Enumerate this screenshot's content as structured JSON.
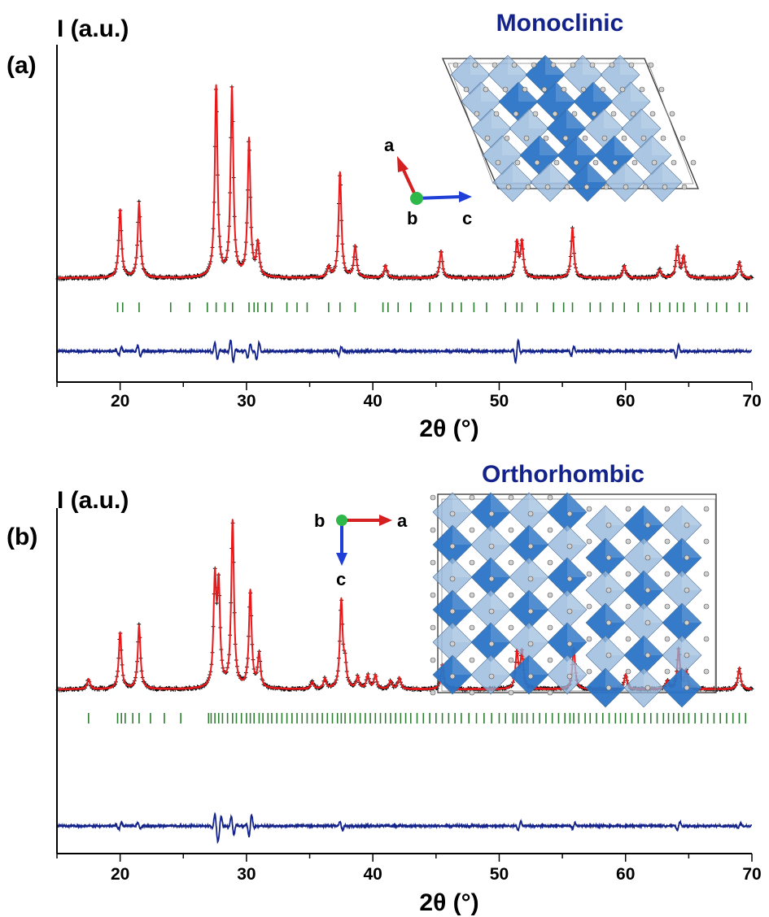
{
  "chart_data": [
    {
      "type": "line",
      "panel_label": "(a)",
      "structure_title": "Monoclinic",
      "crystal_axes": {
        "first": "a",
        "view": "b",
        "second": "c"
      },
      "ylabel": "I (a.u.)",
      "xlabel": "2θ (°)",
      "xlim": [
        15,
        70
      ],
      "xticks": [
        20,
        30,
        40,
        50,
        60,
        70
      ],
      "grid": false,
      "colors": {
        "observed": "#000000",
        "calculated": "#e8191b",
        "difference": "#14238a",
        "bragg": "#2e7d32"
      },
      "series": [
        {
          "name": "observed"
        },
        {
          "name": "calculated"
        },
        {
          "name": "difference"
        },
        {
          "name": "bragg"
        }
      ],
      "peaks": [
        {
          "x": 20.0,
          "h": 0.33
        },
        {
          "x": 21.5,
          "h": 0.36
        },
        {
          "x": 27.6,
          "h": 0.92
        },
        {
          "x": 28.85,
          "h": 0.91
        },
        {
          "x": 30.2,
          "h": 0.66
        },
        {
          "x": 30.9,
          "h": 0.16
        },
        {
          "x": 36.5,
          "h": 0.05
        },
        {
          "x": 37.4,
          "h": 0.51
        },
        {
          "x": 38.6,
          "h": 0.15
        },
        {
          "x": 41.0,
          "h": 0.06
        },
        {
          "x": 45.4,
          "h": 0.13
        },
        {
          "x": 51.4,
          "h": 0.17
        },
        {
          "x": 51.8,
          "h": 0.17
        },
        {
          "x": 55.8,
          "h": 0.24
        },
        {
          "x": 59.9,
          "h": 0.06
        },
        {
          "x": 62.7,
          "h": 0.04
        },
        {
          "x": 64.1,
          "h": 0.15
        },
        {
          "x": 64.6,
          "h": 0.1
        },
        {
          "x": 69.0,
          "h": 0.08
        }
      ],
      "bragg_positions": [
        19.8,
        20.2,
        21.5,
        24.0,
        25.5,
        26.9,
        27.6,
        28.3,
        28.9,
        30.2,
        30.6,
        30.9,
        31.5,
        32.0,
        33.2,
        34.0,
        34.8,
        36.5,
        37.4,
        38.6,
        40.8,
        41.2,
        42.0,
        43.0,
        44.5,
        45.4,
        46.3,
        47.0,
        48.0,
        49.0,
        50.5,
        51.4,
        51.8,
        53.0,
        54.3,
        55.1,
        55.8,
        57.2,
        58.0,
        59.0,
        59.9,
        61.0,
        62.0,
        62.7,
        63.5,
        64.1,
        64.6,
        65.5,
        66.5,
        67.2,
        68.0,
        69.0,
        69.6
      ],
      "difference_features": [
        {
          "x": 20.0,
          "a": 0.15
        },
        {
          "x": 21.5,
          "a": -0.2
        },
        {
          "x": 27.6,
          "a": -0.28
        },
        {
          "x": 28.85,
          "a": -0.38
        },
        {
          "x": 30.2,
          "a": 0.25
        },
        {
          "x": 30.9,
          "a": 0.3
        },
        {
          "x": 37.4,
          "a": 0.15
        },
        {
          "x": 51.4,
          "a": 0.38
        },
        {
          "x": 55.8,
          "a": 0.16
        },
        {
          "x": 64.1,
          "a": 0.22
        }
      ]
    },
    {
      "type": "line",
      "panel_label": "(b)",
      "structure_title": "Orthorhombic",
      "crystal_axes": {
        "first": "a",
        "view": "b",
        "second": "c"
      },
      "ylabel": "I (a.u.)",
      "xlabel": "2θ (°)",
      "xlim": [
        15,
        70
      ],
      "xticks": [
        20,
        30,
        40,
        50,
        60,
        70
      ],
      "grid": false,
      "colors": {
        "observed": "#000000",
        "calculated": "#e8191b",
        "difference": "#14238a",
        "bragg": "#2e7d32"
      },
      "series": [
        {
          "name": "observed"
        },
        {
          "name": "calculated"
        },
        {
          "name": "difference"
        },
        {
          "name": "bragg"
        }
      ],
      "peaks": [
        {
          "x": 17.5,
          "h": 0.06
        },
        {
          "x": 20.0,
          "h": 0.34
        },
        {
          "x": 21.5,
          "h": 0.38
        },
        {
          "x": 27.5,
          "h": 0.62
        },
        {
          "x": 27.8,
          "h": 0.58
        },
        {
          "x": 28.9,
          "h": 1.0
        },
        {
          "x": 30.3,
          "h": 0.58
        },
        {
          "x": 31.0,
          "h": 0.2
        },
        {
          "x": 35.2,
          "h": 0.04
        },
        {
          "x": 36.2,
          "h": 0.06
        },
        {
          "x": 37.5,
          "h": 0.52
        },
        {
          "x": 37.8,
          "h": 0.14
        },
        {
          "x": 38.8,
          "h": 0.07
        },
        {
          "x": 39.6,
          "h": 0.08
        },
        {
          "x": 40.2,
          "h": 0.08
        },
        {
          "x": 41.4,
          "h": 0.05
        },
        {
          "x": 42.1,
          "h": 0.07
        },
        {
          "x": 45.5,
          "h": 0.15
        },
        {
          "x": 51.4,
          "h": 0.22
        },
        {
          "x": 51.8,
          "h": 0.22
        },
        {
          "x": 55.9,
          "h": 0.25
        },
        {
          "x": 60.0,
          "h": 0.09
        },
        {
          "x": 63.3,
          "h": 0.05
        },
        {
          "x": 64.2,
          "h": 0.24
        },
        {
          "x": 64.8,
          "h": 0.11
        },
        {
          "x": 69.0,
          "h": 0.13
        }
      ],
      "bragg_positions": [
        17.5,
        19.8,
        20.1,
        20.4,
        21.0,
        21.5,
        22.4,
        23.5,
        24.8,
        27.0,
        27.2,
        27.5,
        27.8,
        28.1,
        28.5,
        28.9,
        29.2,
        29.6,
        30.0,
        30.3,
        30.6,
        31.0,
        31.3,
        31.7,
        32.0,
        32.4,
        32.8,
        33.2,
        33.6,
        34.0,
        34.4,
        34.8,
        35.2,
        35.6,
        36.0,
        36.4,
        36.8,
        37.2,
        37.5,
        37.8,
        38.2,
        38.6,
        39.0,
        39.4,
        39.8,
        40.2,
        40.6,
        41.0,
        41.4,
        41.8,
        42.2,
        42.6,
        43.0,
        43.5,
        44.0,
        44.5,
        45.0,
        45.5,
        46.0,
        46.5,
        47.0,
        47.6,
        48.2,
        48.8,
        49.4,
        50.0,
        50.5,
        51.1,
        51.4,
        51.8,
        52.2,
        52.7,
        53.2,
        53.7,
        54.2,
        54.7,
        55.2,
        55.6,
        55.9,
        56.3,
        56.8,
        57.2,
        57.7,
        58.2,
        58.7,
        59.2,
        59.6,
        60.0,
        60.5,
        61.0,
        61.5,
        62.0,
        62.5,
        63.0,
        63.4,
        63.8,
        64.2,
        64.6,
        65.0,
        65.5,
        66.0,
        66.5,
        67.0,
        67.5,
        68.0,
        68.5,
        69.0,
        69.5
      ],
      "difference_features": [
        {
          "x": 20.0,
          "a": 0.12
        },
        {
          "x": 21.5,
          "a": -0.1
        },
        {
          "x": 27.6,
          "a": -0.35
        },
        {
          "x": 27.9,
          "a": 0.28
        },
        {
          "x": 28.9,
          "a": -0.3
        },
        {
          "x": 30.3,
          "a": 0.35
        },
        {
          "x": 37.5,
          "a": -0.15
        },
        {
          "x": 51.6,
          "a": 0.14
        },
        {
          "x": 55.9,
          "a": 0.1
        },
        {
          "x": 64.2,
          "a": 0.15
        },
        {
          "x": 69.0,
          "a": 0.08
        }
      ]
    }
  ]
}
